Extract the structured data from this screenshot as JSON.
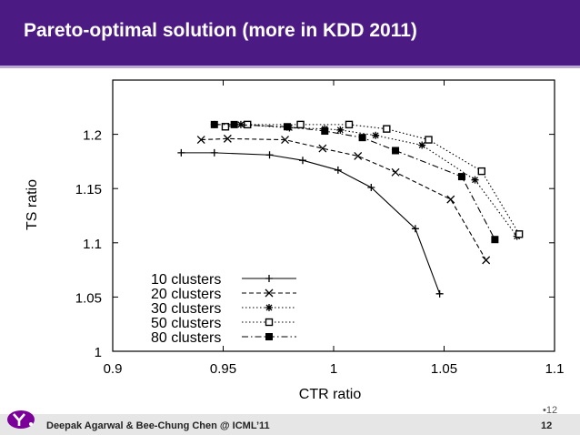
{
  "slide": {
    "title": "Pareto-optimal solution (more in KDD 2011)",
    "footer_text": "Deepak Agarwal & Bee-Chung Chen @ ICML’11",
    "page_small": "•12",
    "page_number": "12"
  },
  "colors": {
    "title_bar": "#4b1a82",
    "logo": "#7b0099"
  },
  "chart_data": {
    "type": "line",
    "title": "",
    "xlabel": "CTR ratio",
    "ylabel": "TS ratio",
    "xlim": [
      0.9,
      1.1
    ],
    "ylim": [
      1.0,
      1.25
    ],
    "xticks": [
      0.9,
      0.95,
      1.0,
      1.05,
      1.1
    ],
    "xtick_labels": [
      "0.9",
      "0.95",
      "1",
      "1.05",
      "1.1"
    ],
    "yticks": [
      1.0,
      1.05,
      1.1,
      1.15,
      1.2
    ],
    "ytick_labels": [
      "1",
      "1.05",
      "1.1",
      "1.15",
      "1.2"
    ],
    "legend_position": "bottom-left",
    "grid": false,
    "series": [
      {
        "name": "10 clusters",
        "marker": "plus",
        "dash": "solid",
        "x": [
          0.931,
          0.946,
          0.971,
          0.986,
          1.002,
          1.017,
          1.037,
          1.048
        ],
        "y": [
          1.183,
          1.183,
          1.181,
          1.176,
          1.167,
          1.151,
          1.113,
          1.053
        ]
      },
      {
        "name": "20 clusters",
        "marker": "x",
        "dash": "dash",
        "x": [
          0.94,
          0.952,
          0.978,
          0.995,
          1.011,
          1.028,
          1.053,
          1.069
        ],
        "y": [
          1.195,
          1.196,
          1.195,
          1.187,
          1.18,
          1.165,
          1.14,
          1.084
        ]
      },
      {
        "name": "30 clusters",
        "marker": "star",
        "dash": "dot",
        "x": [
          0.946,
          0.958,
          0.98,
          0.996,
          1.003,
          1.019,
          1.04,
          1.064,
          1.083
        ],
        "y": [
          1.209,
          1.209,
          1.206,
          1.205,
          1.204,
          1.199,
          1.19,
          1.158,
          1.106
        ]
      },
      {
        "name": "50 clusters",
        "marker": "square-open",
        "dash": "dot",
        "x": [
          0.951,
          0.961,
          0.985,
          1.007,
          1.024,
          1.043,
          1.067,
          1.084
        ],
        "y": [
          1.207,
          1.209,
          1.209,
          1.209,
          1.205,
          1.195,
          1.166,
          1.108
        ]
      },
      {
        "name": "80 clusters",
        "marker": "square-filled",
        "dash": "dashdot",
        "x": [
          0.946,
          0.955,
          0.979,
          0.996,
          1.013,
          1.028,
          1.058,
          1.073
        ],
        "y": [
          1.209,
          1.209,
          1.207,
          1.203,
          1.197,
          1.185,
          1.161,
          1.103
        ]
      }
    ]
  }
}
